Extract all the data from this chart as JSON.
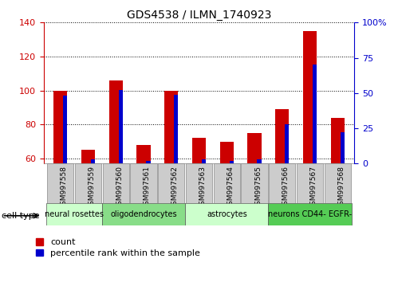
{
  "title": "GDS4538 / ILMN_1740923",
  "samples": [
    "GSM997558",
    "GSM997559",
    "GSM997560",
    "GSM997561",
    "GSM997562",
    "GSM997563",
    "GSM997564",
    "GSM997565",
    "GSM997566",
    "GSM997567",
    "GSM997568"
  ],
  "count_values": [
    100,
    65,
    106,
    68,
    100,
    72,
    70,
    75,
    89,
    135,
    84
  ],
  "percentile_values": [
    48,
    3,
    52,
    2,
    49,
    3,
    2,
    3,
    28,
    70,
    22
  ],
  "count_color": "#cc0000",
  "percentile_color": "#0000cc",
  "ylim_left": [
    57,
    140
  ],
  "ylim_right": [
    0,
    100
  ],
  "yticks_left": [
    60,
    80,
    100,
    120,
    140
  ],
  "yticks_right": [
    0,
    25,
    50,
    75,
    100
  ],
  "yticklabels_right": [
    "0",
    "25",
    "50",
    "75",
    "100%"
  ],
  "cell_types": [
    {
      "label": "neural rosettes",
      "start": 0,
      "end": 2,
      "color": "#ccffcc"
    },
    {
      "label": "oligodendrocytes",
      "start": 2,
      "end": 5,
      "color": "#88dd88"
    },
    {
      "label": "astrocytes",
      "start": 5,
      "end": 8,
      "color": "#ccffcc"
    },
    {
      "label": "neurons CD44- EGFR-",
      "start": 8,
      "end": 11,
      "color": "#55cc55"
    }
  ],
  "bar_width": 0.5,
  "blue_bar_width": 0.15,
  "bg_color": "#ffffff",
  "tick_label_color_left": "#cc0000",
  "tick_label_color_right": "#0000cc",
  "legend_count": "count",
  "legend_percentile": "percentile rank within the sample",
  "cell_type_label": "cell type",
  "xlabel_bg": "#cccccc"
}
